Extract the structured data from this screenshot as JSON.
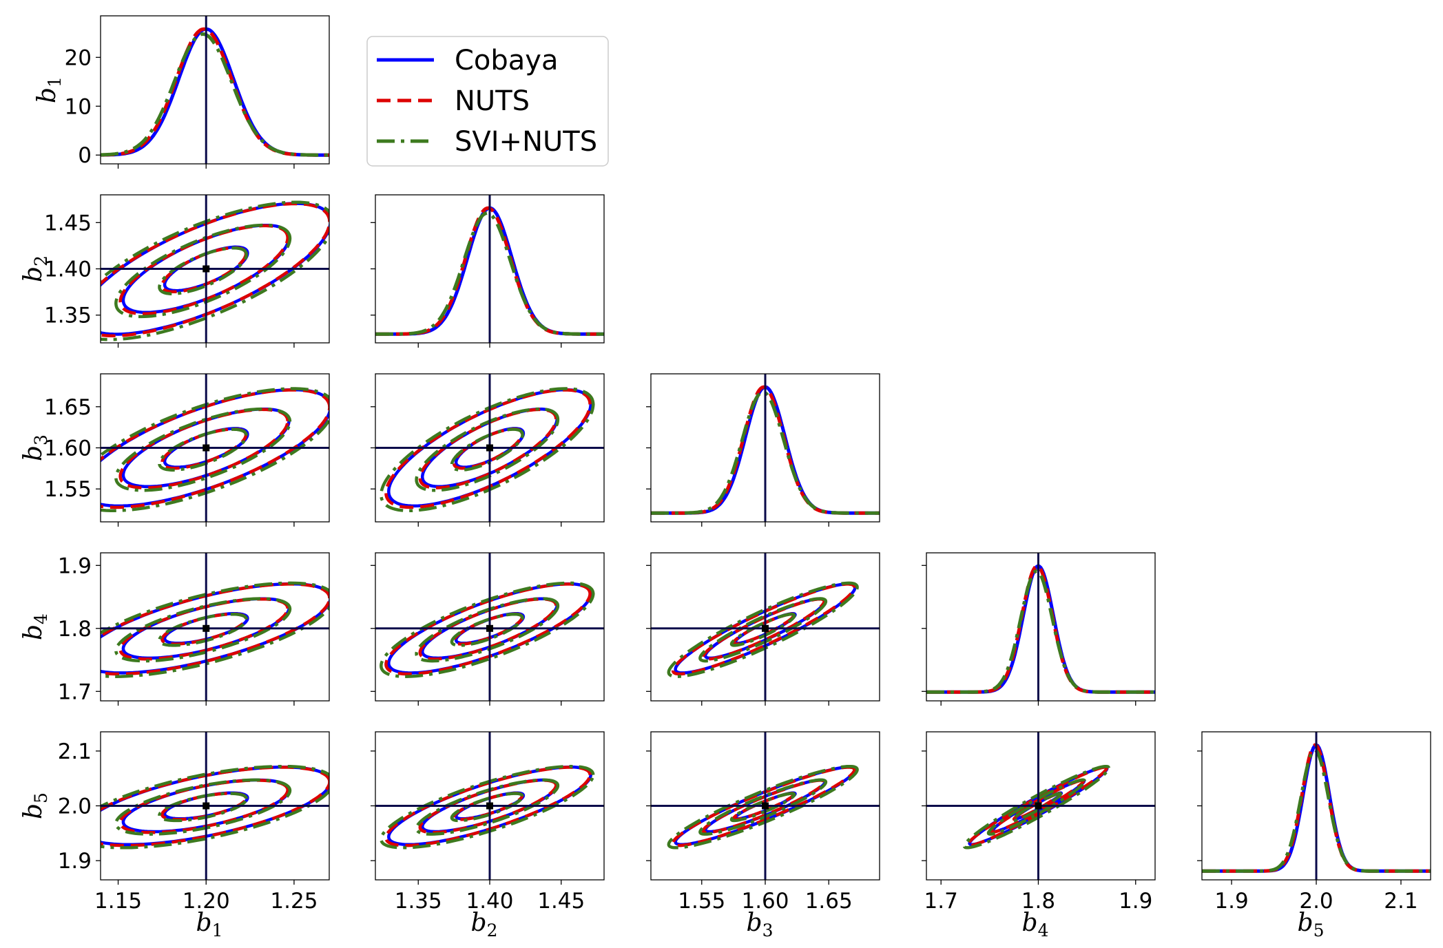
{
  "chart_data": {
    "type": "corner",
    "parameters": [
      "b1",
      "b2",
      "b3",
      "b4",
      "b5"
    ],
    "axis_labels": [
      {
        "symbol": "b",
        "subscript": "1"
      },
      {
        "symbol": "b",
        "subscript": "2"
      },
      {
        "symbol": "b",
        "subscript": "3"
      },
      {
        "symbol": "b",
        "subscript": "4"
      },
      {
        "symbol": "b",
        "subscript": "5"
      }
    ],
    "truth": [
      1.2,
      1.4,
      1.6,
      1.8,
      2.0
    ],
    "centers": [
      1.2,
      1.4,
      1.6,
      1.8,
      2.0
    ],
    "sigmas": [
      0.0155,
      0.0155,
      0.0155,
      0.0155,
      0.0155
    ],
    "ranges": [
      [
        1.14,
        1.27
      ],
      [
        1.32,
        1.48
      ],
      [
        1.51,
        1.69
      ],
      [
        1.685,
        1.92
      ],
      [
        1.865,
        2.135
      ]
    ],
    "x_ticks": [
      [
        "1.15",
        "1.20",
        "1.25"
      ],
      [
        "1.35",
        "1.40",
        "1.45"
      ],
      [
        "1.55",
        "1.60",
        "1.65"
      ],
      [
        "1.7",
        "1.8",
        "1.9"
      ],
      [
        "1.9",
        "2.0",
        "2.1"
      ]
    ],
    "y_ticks": [
      [
        "1.35",
        "1.40",
        "1.45"
      ],
      [
        "1.55",
        "1.60",
        "1.65"
      ],
      [
        "1.7",
        "1.8",
        "1.9"
      ],
      [
        "1.9",
        "2.0",
        "2.1"
      ]
    ],
    "diag_y_ticks": [
      "0",
      "10",
      "20"
    ],
    "diag_peak_density": 25.8,
    "diag_ylim": [
      -1.8,
      28.5
    ],
    "correlations": {
      "1-0": 0.72,
      "2-0": 0.7,
      "2-1": 0.75,
      "3-0": 0.68,
      "3-1": 0.78,
      "3-2": 0.92,
      "4-0": 0.62,
      "4-1": 0.8,
      "4-2": 0.93,
      "4-3": 0.97
    },
    "contour_levels_sigma": [
      1,
      2,
      3
    ],
    "series": [
      {
        "name": "Cobaya",
        "color": "#0000ff",
        "dash": "solid"
      },
      {
        "name": "NUTS",
        "color": "#dd0000",
        "dash": "dashed"
      },
      {
        "name": "SVI+NUTS",
        "color": "#3d7a1f",
        "dash": "dashdot"
      }
    ],
    "truth_line_color": "#0a0a4a",
    "legend_position": "upper-right of first panel",
    "grid": false
  }
}
